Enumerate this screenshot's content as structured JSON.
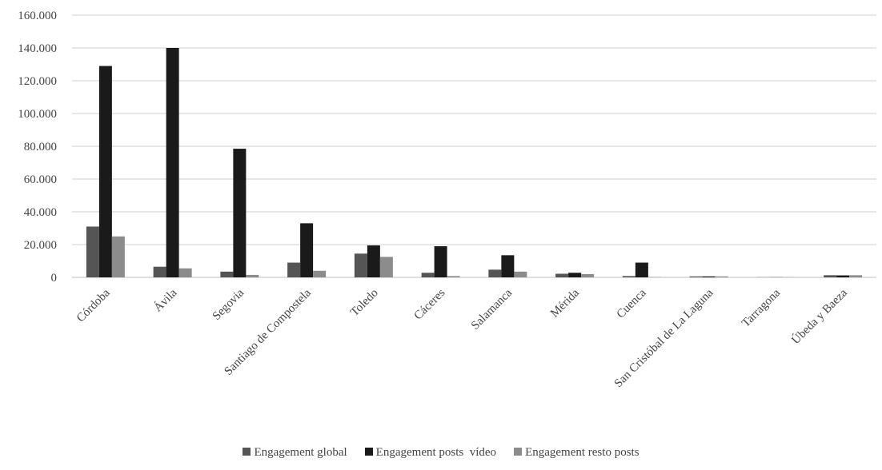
{
  "chart_data": {
    "type": "bar",
    "categories": [
      "Córdoba",
      "Ávila",
      "Segovia",
      "Santiago de Compostela",
      "Toledo",
      "Cáceres",
      "Salamanca",
      "Mérida",
      "Cuenca",
      "San Cristóbal de La Laguna",
      "Tarragona",
      "Úbeda y Baeza"
    ],
    "series": [
      {
        "name": "Engagement global",
        "color": "#555555",
        "values": [
          31000,
          6500,
          3500,
          9000,
          14500,
          2800,
          4700,
          2200,
          800,
          600,
          100,
          1300
        ]
      },
      {
        "name": "Engagement posts  vídeo",
        "color": "#1a1a1a",
        "values": [
          129000,
          140000,
          78500,
          33000,
          19500,
          19000,
          13500,
          2800,
          9000,
          600,
          100,
          1200
        ]
      },
      {
        "name": "Engagement resto posts",
        "color": "#8c8c8c",
        "values": [
          25000,
          5500,
          1500,
          4000,
          12500,
          800,
          3500,
          2000,
          200,
          600,
          100,
          1300
        ]
      }
    ],
    "yticks": [
      "0",
      "20.000",
      "40.000",
      "60.000",
      "80.000",
      "100.000",
      "120.000",
      "140.000",
      "160.000"
    ],
    "ylim": [
      0,
      160000
    ],
    "grid": true,
    "legend": "bottom"
  }
}
